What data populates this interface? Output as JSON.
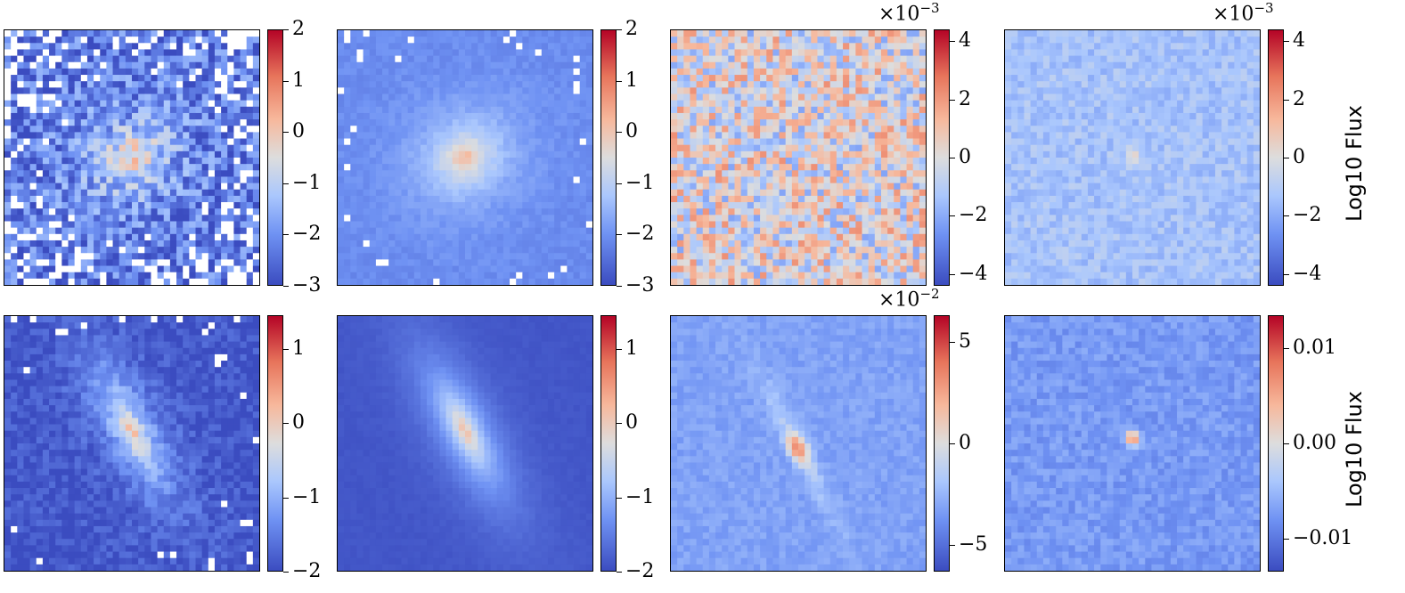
{
  "colormap": {
    "name": "coolwarm",
    "low": "#3b4cc0",
    "mid": "#dddddd",
    "high": "#b40426"
  },
  "colorbar_label": "Log10 Flux",
  "chart_data": [
    {
      "type": "heatmap",
      "row": 0,
      "col": 0,
      "grid": 40,
      "pattern": "galaxy",
      "noise": 0.9,
      "masked": true,
      "center": [
        0.5,
        0.5
      ],
      "angle_deg": 30,
      "extent": [
        1.0,
        0.85
      ],
      "peak": 0.5,
      "floor": -2.4,
      "vmin": -3,
      "vmax": 2,
      "ticks": [
        -3,
        -2,
        -1,
        0,
        1,
        2
      ],
      "tick_labels": [
        "−3",
        "−2",
        "−1",
        "0",
        "1",
        "2"
      ],
      "offset_text": "",
      "ylabel": ""
    },
    {
      "type": "heatmap",
      "row": 0,
      "col": 1,
      "grid": 40,
      "pattern": "galaxy",
      "noise": 0.15,
      "masked": true,
      "center": [
        0.5,
        0.5
      ],
      "angle_deg": 30,
      "extent": [
        1.0,
        0.85
      ],
      "peak": 0.5,
      "floor": -2.1,
      "vmin": -3,
      "vmax": 2,
      "ticks": [
        -3,
        -2,
        -1,
        0,
        1,
        2
      ],
      "tick_labels": [
        "−3",
        "−2",
        "−1",
        "0",
        "1",
        "2"
      ],
      "offset_text": "",
      "ylabel": ""
    },
    {
      "type": "heatmap",
      "row": 0,
      "col": 2,
      "grid": 40,
      "pattern": "noise",
      "noise": 2.2,
      "vmin": -4.4,
      "vmax": 4.4,
      "ticks": [
        -4,
        -2,
        0,
        2,
        4
      ],
      "tick_labels": [
        "−4",
        "−2",
        "0",
        "2",
        "4"
      ],
      "offset_text": "×10",
      "offset_exp": "−3",
      "ylabel": ""
    },
    {
      "type": "heatmap",
      "row": 0,
      "col": 3,
      "grid": 40,
      "pattern": "point",
      "noise": 0.6,
      "center": [
        0.5,
        0.5
      ],
      "peak": 2.0,
      "bias": -1.4,
      "vmin": -4.4,
      "vmax": 4.4,
      "ticks": [
        -4,
        -2,
        0,
        2,
        4
      ],
      "tick_labels": [
        "−4",
        "−2",
        "0",
        "2",
        "4"
      ],
      "offset_text": "×10",
      "offset_exp": "−3",
      "ylabel": "Log10 Flux"
    },
    {
      "type": "heatmap",
      "row": 1,
      "col": 0,
      "grid": 40,
      "pattern": "disk",
      "noise": 0.25,
      "masked": true,
      "center": [
        0.5,
        0.45
      ],
      "angle_deg": -62,
      "extent": [
        1.6,
        0.55
      ],
      "peak": 0.3,
      "floor": -1.9,
      "vmin": -2,
      "vmax": 1.45,
      "ticks": [
        -2,
        -1,
        0,
        1
      ],
      "tick_labels": [
        "−2",
        "−1",
        "0",
        "1"
      ],
      "offset_text": "",
      "ylabel": ""
    },
    {
      "type": "heatmap",
      "row": 1,
      "col": 1,
      "grid": 40,
      "pattern": "disk",
      "noise": 0.04,
      "center": [
        0.5,
        0.45
      ],
      "angle_deg": -62,
      "extent": [
        1.6,
        0.55
      ],
      "peak": 0.35,
      "floor": -1.9,
      "vmin": -2,
      "vmax": 1.45,
      "ticks": [
        -2,
        -1,
        0,
        1
      ],
      "tick_labels": [
        "−2",
        "−1",
        "0",
        "1"
      ],
      "offset_text": "",
      "ylabel": ""
    },
    {
      "type": "heatmap",
      "row": 1,
      "col": 2,
      "grid": 40,
      "pattern": "residual",
      "noise": 0.5,
      "center": [
        0.5,
        0.52
      ],
      "angle_deg": -62,
      "peak": 5.5,
      "bias": -3.2,
      "vmin": -6.3,
      "vmax": 6.3,
      "ticks": [
        -5,
        0,
        5
      ],
      "tick_labels": [
        "−5",
        "0",
        "5"
      ],
      "offset_text": "×10",
      "offset_exp": "−2",
      "ylabel": ""
    },
    {
      "type": "heatmap",
      "row": 1,
      "col": 3,
      "grid": 40,
      "pattern": "point",
      "noise": 0.0015,
      "center": [
        0.5,
        0.48
      ],
      "peak": 0.014,
      "bias": -0.0075,
      "vmin": -0.0135,
      "vmax": 0.0135,
      "ticks": [
        -0.01,
        0.0,
        0.01
      ],
      "tick_labels": [
        "−0.01",
        "0.00",
        "0.01"
      ],
      "offset_text": "",
      "ylabel": "Log10 Flux"
    }
  ]
}
